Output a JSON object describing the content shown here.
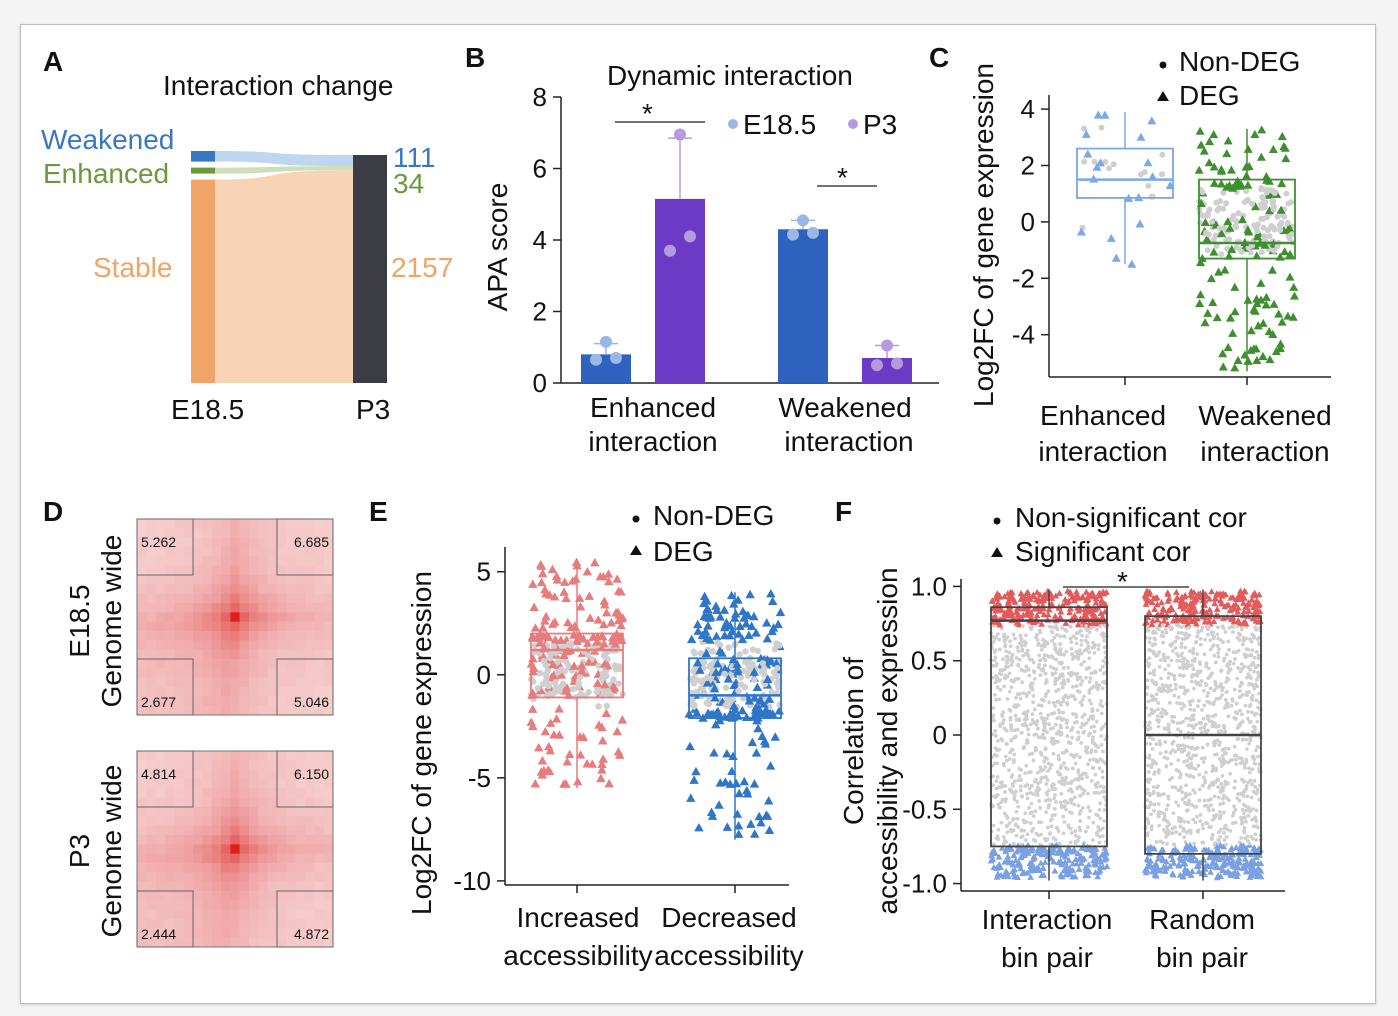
{
  "panels": {
    "A": {
      "label": "A"
    },
    "B": {
      "label": "B"
    },
    "C": {
      "label": "C"
    },
    "D": {
      "label": "D"
    },
    "E": {
      "label": "E"
    },
    "F": {
      "label": "F"
    }
  },
  "colors": {
    "weakened": "#3a77c2",
    "enhanced": "#6b9a3e",
    "stable": "#f0a468",
    "stable_flow": "#f6cfae",
    "p3_bar": "#3c3c44",
    "e185_bar": "#2f62bf",
    "p3_bar_b": "#6b3bc6",
    "e185_dot": "#9ab7e6",
    "p3_dot": "#b69ae0",
    "c_enh": "#7aa8e8",
    "c_weak": "#3f8f31",
    "grey_dot": "#cfcfcf",
    "e_inc": "#e77c7c",
    "e_dec": "#2f76c9",
    "f_red": "#e35a5a",
    "f_blue": "#7aa0e4"
  },
  "chart_data": [
    {
      "id": "A",
      "type": "sankey",
      "title": "Interaction change",
      "source_label": "E18.5",
      "target_label": "P3",
      "flows": [
        {
          "name": "Weakened",
          "value": 111
        },
        {
          "name": "Enhanced",
          "value": 34
        },
        {
          "name": "Stable",
          "value": 2157
        }
      ],
      "value_labels": [
        "111",
        "34",
        "2157"
      ]
    },
    {
      "id": "B",
      "type": "bar",
      "title": "Dynamic interaction",
      "ylabel": "APA score",
      "ylim": [
        0,
        8
      ],
      "yticks": [
        "0",
        "2",
        "4",
        "6",
        "8"
      ],
      "categories": [
        "Enhanced\ninteraction",
        "Weakened\ninteraction"
      ],
      "category_lines": [
        [
          "Enhanced",
          "interaction"
        ],
        [
          "Weakened",
          "interaction"
        ]
      ],
      "series": [
        {
          "name": "E18.5",
          "values": [
            0.8,
            4.3
          ],
          "errors": [
            0.3,
            0.25
          ],
          "points": [
            [
              0.65,
              0.7,
              1.15
            ],
            [
              4.15,
              4.2,
              4.55
            ]
          ]
        },
        {
          "name": "P3",
          "values": [
            5.15,
            0.7
          ],
          "errors": [
            1.7,
            0.35
          ],
          "points": [
            [
              3.7,
              4.1,
              6.95
            ],
            [
              0.5,
              0.55,
              1.05
            ]
          ]
        }
      ],
      "annotations": [
        "*",
        "*"
      ],
      "legend": "top-right"
    },
    {
      "id": "C",
      "type": "box",
      "ylabel": "Log2FC of gene expression",
      "ylim": [
        -5.5,
        4.5
      ],
      "yticks": [
        "4",
        "2",
        "0",
        "-2",
        "-4"
      ],
      "categories": [
        [
          "Enhanced",
          "interaction"
        ],
        [
          "Weakened",
          "interaction"
        ]
      ],
      "legend_entries": [
        "Non-DEG",
        "DEG"
      ],
      "boxes": [
        {
          "q1": 0.85,
          "median": 1.5,
          "q3": 2.6,
          "whisker_low": -1.5,
          "whisker_high": 3.9
        },
        {
          "q1": -1.3,
          "median": -0.75,
          "q3": 1.5,
          "whisker_low": -5.3,
          "whisker_high": 3.3
        }
      ]
    },
    {
      "id": "D",
      "type": "heatmap",
      "row_labels": [
        [
          "E18.5",
          "Genome wide"
        ],
        [
          "P3",
          "Genome wide"
        ]
      ],
      "corner_values": [
        [
          "5.262",
          "6.685",
          "2.677",
          "5.046"
        ],
        [
          "4.814",
          "6.150",
          "2.444",
          "4.872"
        ]
      ]
    },
    {
      "id": "E",
      "type": "box",
      "ylabel": "Log2FC of gene expression",
      "ylim": [
        -10.2,
        6.2
      ],
      "yticks": [
        "5",
        "0",
        "-5",
        "-10"
      ],
      "categories": [
        [
          "Increased",
          "accessibility"
        ],
        [
          "Decreased",
          "accessibility"
        ]
      ],
      "legend_entries": [
        "Non-DEG",
        "DEG"
      ],
      "boxes": [
        {
          "q1": -1.1,
          "median": 1.2,
          "q3": 2.0,
          "whisker_low": -5.5,
          "whisker_high": 5.5
        },
        {
          "q1": -2.1,
          "median": -1.0,
          "q3": 0.8,
          "whisker_low": -8.0,
          "whisker_high": 4.0
        }
      ]
    },
    {
      "id": "F",
      "type": "box",
      "ylabel": "Correlation of\naccessibility and expression",
      "ylabel_lines": [
        "Correlation of",
        "accessibility and expression"
      ],
      "ylim": [
        -1.05,
        1.05
      ],
      "yticks": [
        "1.0",
        "0.5",
        "0",
        "-0.5",
        "-1.0"
      ],
      "categories": [
        [
          "Interaction",
          "bin pair"
        ],
        [
          "Random",
          "bin pair"
        ]
      ],
      "legend_entries": [
        "Non-significant cor",
        "Significant cor"
      ],
      "annotations": [
        "*"
      ],
      "boxes": [
        {
          "q1": -0.75,
          "median": 0.77,
          "q3": 0.86,
          "whisker_low": -0.98,
          "whisker_high": 0.98
        },
        {
          "q1": -0.8,
          "median": 0.0,
          "q3": 0.8,
          "whisker_low": -0.98,
          "whisker_high": 0.98
        }
      ]
    }
  ]
}
